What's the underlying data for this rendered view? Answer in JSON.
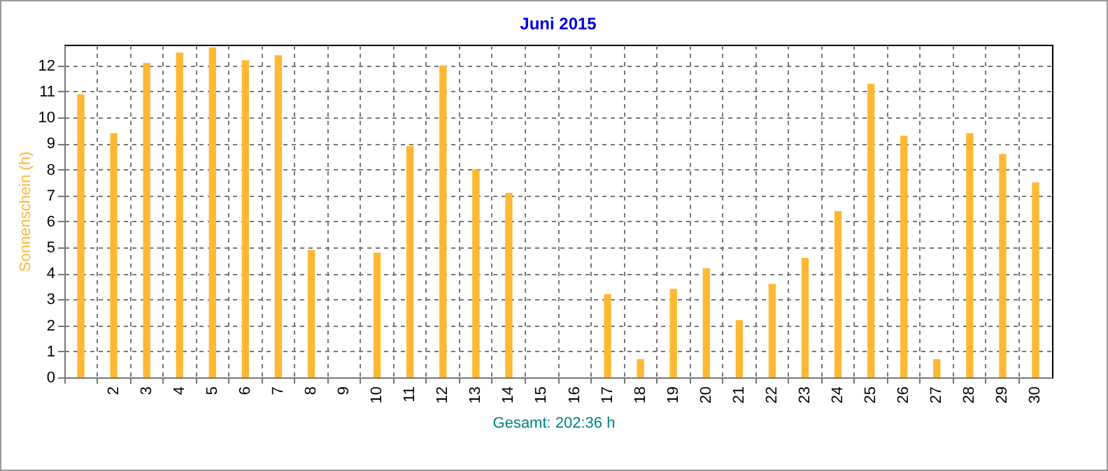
{
  "chart_data": {
    "type": "bar",
    "title": "Juni 2015",
    "ylabel": "Sonnenschein  (h)",
    "annotations": [
      "Gesamt: 202:36 h"
    ],
    "categories": [
      null,
      "2",
      "3",
      "4",
      "5",
      "6",
      "7",
      "8",
      "9",
      "10",
      "11",
      "12",
      "13",
      "14",
      "15",
      "16",
      "17",
      "18",
      "19",
      "20",
      "21",
      "22",
      "23",
      "24",
      "25",
      "26",
      "27",
      "28",
      "29",
      "30"
    ],
    "values": [
      10.9,
      9.4,
      12.1,
      12.5,
      12.7,
      12.2,
      12.4,
      4.9,
      0,
      4.8,
      8.9,
      12.0,
      8.0,
      7.1,
      0,
      0,
      3.2,
      0.7,
      3.4,
      4.2,
      2.2,
      3.6,
      4.6,
      6.4,
      11.3,
      9.3,
      0.7,
      9.4,
      8.6,
      7.5
    ],
    "color": "#ffb833",
    "ylim": [
      0,
      12.8
    ],
    "yticks": [
      0,
      1,
      2,
      3,
      4,
      5,
      6,
      7,
      8,
      9,
      10,
      11,
      12
    ],
    "grid": true
  }
}
